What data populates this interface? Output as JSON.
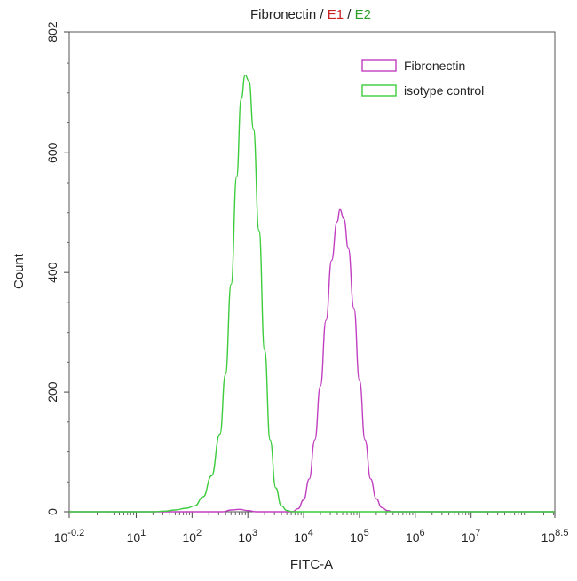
{
  "chart_data": {
    "type": "line",
    "title_parts": [
      {
        "text": "Fibronectin",
        "color": "#222222"
      },
      {
        "text": " / ",
        "color": "#222222"
      },
      {
        "text": "E1",
        "color": "#cc2222"
      },
      {
        "text": " / ",
        "color": "#222222"
      },
      {
        "text": "E2",
        "color": "#2a9d2a"
      }
    ],
    "xlabel": "FITC-A",
    "ylabel": "Count",
    "x_scale": "log10",
    "xlim": [
      -0.2,
      8.5
    ],
    "ylim": [
      0,
      802
    ],
    "x_ticks": [
      {
        "base": "10",
        "exp": "-0.2",
        "pos": -0.2
      },
      {
        "base": "10",
        "exp": "1",
        "pos": 1
      },
      {
        "base": "10",
        "exp": "2",
        "pos": 2
      },
      {
        "base": "10",
        "exp": "3",
        "pos": 3
      },
      {
        "base": "10",
        "exp": "4",
        "pos": 4
      },
      {
        "base": "10",
        "exp": "5",
        "pos": 5
      },
      {
        "base": "10",
        "exp": "6",
        "pos": 6
      },
      {
        "base": "10",
        "exp": "7",
        "pos": 7
      },
      {
        "base": "10",
        "exp": "8.5",
        "pos": 8.5
      }
    ],
    "y_ticks": [
      {
        "label": "0",
        "value": 0
      },
      {
        "label": "200",
        "value": 200
      },
      {
        "label": "400",
        "value": 400
      },
      {
        "label": "600",
        "value": 600
      },
      {
        "label": "802",
        "value": 802
      }
    ],
    "legend_position": "top-right",
    "series": [
      {
        "name": "Fibronectin",
        "color": "#c040c0",
        "points": [
          [
            -0.2,
            0
          ],
          [
            2.55,
            0
          ],
          [
            2.7,
            3
          ],
          [
            2.85,
            4
          ],
          [
            3.0,
            2
          ],
          [
            3.15,
            0
          ],
          [
            3.8,
            0
          ],
          [
            3.9,
            5
          ],
          [
            4.0,
            20
          ],
          [
            4.1,
            55
          ],
          [
            4.2,
            120
          ],
          [
            4.3,
            210
          ],
          [
            4.4,
            320
          ],
          [
            4.5,
            420
          ],
          [
            4.6,
            485
          ],
          [
            4.65,
            505
          ],
          [
            4.72,
            490
          ],
          [
            4.8,
            440
          ],
          [
            4.9,
            340
          ],
          [
            5.0,
            220
          ],
          [
            5.1,
            120
          ],
          [
            5.2,
            55
          ],
          [
            5.3,
            22
          ],
          [
            5.4,
            7
          ],
          [
            5.5,
            2
          ],
          [
            5.6,
            0
          ],
          [
            8.5,
            0
          ]
        ]
      },
      {
        "name": "isotype control",
        "color": "#3ccc3c",
        "points": [
          [
            -0.2,
            0
          ],
          [
            1.3,
            0
          ],
          [
            1.5,
            1
          ],
          [
            1.7,
            3
          ],
          [
            1.9,
            6
          ],
          [
            2.05,
            10
          ],
          [
            2.2,
            25
          ],
          [
            2.35,
            60
          ],
          [
            2.5,
            130
          ],
          [
            2.6,
            230
          ],
          [
            2.7,
            380
          ],
          [
            2.8,
            560
          ],
          [
            2.88,
            690
          ],
          [
            2.95,
            730
          ],
          [
            3.02,
            720
          ],
          [
            3.1,
            640
          ],
          [
            3.2,
            470
          ],
          [
            3.3,
            270
          ],
          [
            3.4,
            120
          ],
          [
            3.5,
            40
          ],
          [
            3.6,
            10
          ],
          [
            3.7,
            2
          ],
          [
            3.8,
            0
          ],
          [
            8.5,
            0
          ]
        ]
      }
    ]
  }
}
